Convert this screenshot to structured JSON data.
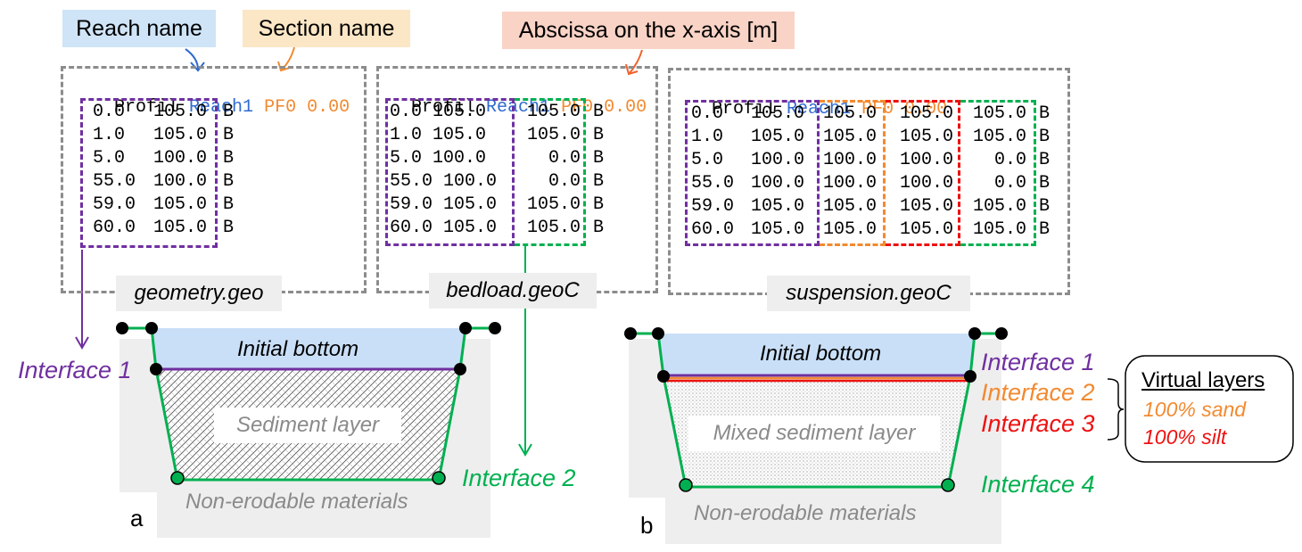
{
  "callouts": {
    "reach": "Reach name",
    "section": "Section name",
    "abscissa": "Abscissa on the x-axis [m]"
  },
  "files": {
    "geometry": {
      "name": "geometry.geo",
      "header": {
        "keyword": "Profil",
        "reach": "Reach1",
        "section": "PF0",
        "abscissa": "0.00"
      },
      "rows": [
        [
          "0.0",
          "105.0",
          "B"
        ],
        [
          "1.0",
          "105.0",
          "B"
        ],
        [
          "5.0",
          "100.0",
          "B"
        ],
        [
          "55.0",
          "100.0",
          "B"
        ],
        [
          "59.0",
          "105.0",
          "B"
        ],
        [
          "60.0",
          "105.0",
          "B"
        ]
      ]
    },
    "bedload": {
      "name": "bedload.geoC",
      "header": {
        "keyword": "Profil",
        "reach": "Reach1",
        "section": "PF0",
        "abscissa": "0.00"
      },
      "rows": [
        [
          "0.0 105.0",
          "105.0",
          "B"
        ],
        [
          "1.0 105.0",
          "105.0",
          "B"
        ],
        [
          "5.0 100.0",
          "0.0",
          "B"
        ],
        [
          "55.0 100.0",
          "0.0",
          "B"
        ],
        [
          "59.0 105.0",
          "105.0",
          "B"
        ],
        [
          "60.0 105.0",
          "105.0",
          "B"
        ]
      ]
    },
    "suspension": {
      "name": "suspension.geoC",
      "header": {
        "keyword": "Profil",
        "reach": "Reach1",
        "section": "PF0",
        "abscissa": "0.00"
      },
      "rows": [
        [
          "0.0",
          "105.0",
          "105.0",
          "105.0",
          "105.0",
          "B"
        ],
        [
          "1.0",
          "105.0",
          "105.0",
          "105.0",
          "105.0",
          "B"
        ],
        [
          "5.0",
          "100.0",
          "100.0",
          "100.0",
          "0.0",
          "B"
        ],
        [
          "55.0",
          "100.0",
          "100.0",
          "100.0",
          "0.0",
          "B"
        ],
        [
          "59.0",
          "105.0",
          "105.0",
          "105.0",
          "105.0",
          "B"
        ],
        [
          "60.0",
          "105.0",
          "105.0",
          "105.0",
          "105.0",
          "B"
        ]
      ]
    }
  },
  "panel_a": {
    "letter": "a",
    "initial_bottom": "Initial bottom",
    "layer": "Sediment layer",
    "base": "Non-erodable materials",
    "interface1": "Interface 1",
    "interface2": "Interface 2"
  },
  "panel_b": {
    "letter": "b",
    "initial_bottom": "Initial bottom",
    "layer": "Mixed sediment layer",
    "base": "Non-erodable materials",
    "interface1": "Interface 1",
    "interface2": "Interface 2",
    "interface3": "Interface 3",
    "interface4": "Interface 4"
  },
  "virtual_layers": {
    "title": "Virtual layers",
    "sand": "100% sand",
    "silt": "100% silt"
  },
  "colors": {
    "purple": "#7030a0",
    "green": "#00b050",
    "orange": "#f28a30",
    "red": "#ee1111",
    "blue_text": "#2f6bd0",
    "callout_blue": "#cfe4f7",
    "callout_orange": "#fbe6c6",
    "callout_salmon": "#f9d3c6",
    "water": "#c9dff7",
    "bg_gray": "#eeeeee"
  }
}
